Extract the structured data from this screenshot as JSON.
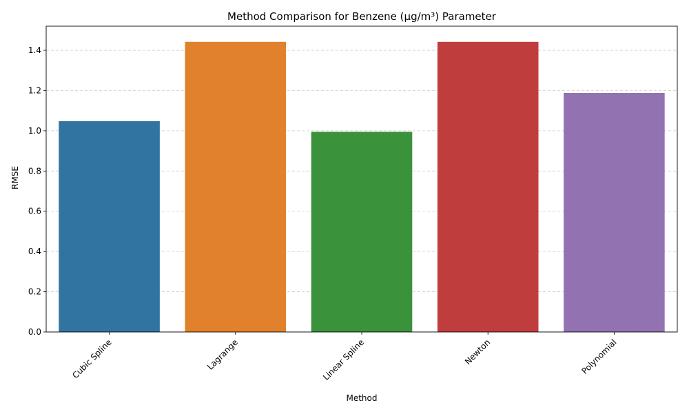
{
  "chart_data": {
    "type": "bar",
    "title": "Method Comparison for Benzene (µg/m³) Parameter",
    "xlabel": "Method",
    "ylabel": "RMSE",
    "categories": [
      "Cubic Spline",
      "Lagrange",
      "Linear Spline",
      "Newton",
      "Polynomial"
    ],
    "values": [
      1.048,
      1.442,
      0.995,
      1.442,
      1.188
    ],
    "colors": [
      "#3274a1",
      "#e1812c",
      "#3a923a",
      "#c03d3e",
      "#9372b2"
    ],
    "ylim": [
      0,
      1.52
    ],
    "yticks": [
      "0.0",
      "0.2",
      "0.4",
      "0.6",
      "0.8",
      "1.0",
      "1.2",
      "1.4"
    ],
    "grid": "y-dashed",
    "legend": "none",
    "xtick_rotation": 45
  }
}
